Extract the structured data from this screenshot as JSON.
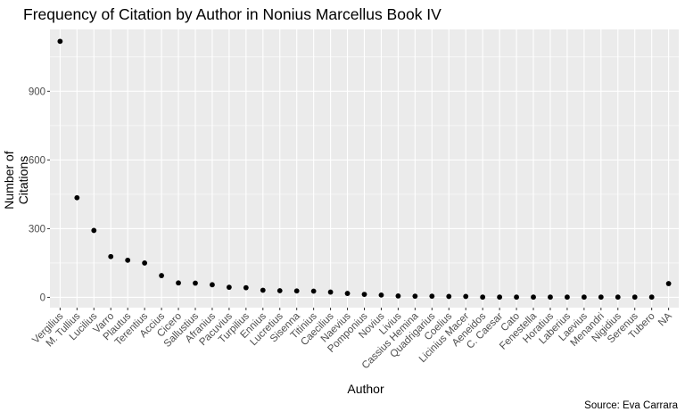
{
  "chart_data": {
    "type": "scatter",
    "title": "Frequency of Citation by Author in Nonius Marcellus Book IV",
    "xlabel": "Author",
    "ylabel": "Number of Citations",
    "caption": "Source: Eva Carrara",
    "ylim": [
      -45,
      1170
    ],
    "yticks": [
      0,
      300,
      600,
      900
    ],
    "grid": true,
    "background": "#EBEBEB",
    "point_color": "#000000",
    "categories": [
      "Vergilius",
      "M. Tullius",
      "Lucilius",
      "Varro",
      "Plautus",
      "Terentius",
      "Accius",
      "Cicero",
      "Sallustius",
      "Afranius",
      "Pacuvius",
      "Turpilius",
      "Ennius",
      "Lucretius",
      "Sisenna",
      "Titinius",
      "Caecilius",
      "Naevius",
      "Pomponius",
      "Novius",
      "Livius",
      "Cassius Hemina",
      "Quadrigarius",
      "Coelius",
      "Licinius Macer",
      "Aeneidos",
      "C. Caesar",
      "Cato",
      "Fenestella",
      "Horatius",
      "Laberius",
      "Laevius",
      "Menandri",
      "Nigidius",
      "Serenus",
      "Tubero",
      "NA"
    ],
    "values": [
      1118,
      435,
      292,
      178,
      162,
      150,
      95,
      63,
      62,
      55,
      44,
      42,
      31,
      29,
      28,
      27,
      23,
      17,
      13,
      10,
      6,
      5,
      5,
      4,
      4,
      1,
      1,
      1,
      1,
      1,
      1,
      1,
      1,
      1,
      1,
      1,
      60
    ]
  }
}
